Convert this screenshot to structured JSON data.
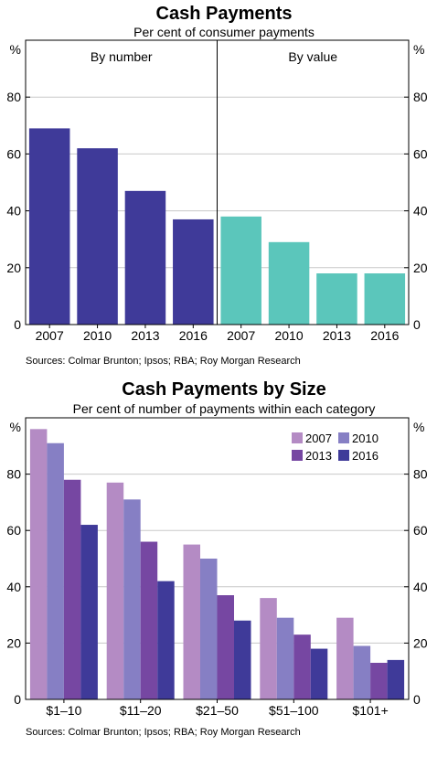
{
  "chart_data": [
    {
      "type": "bar",
      "title": "Cash Payments",
      "subtitle": "Per cent of consumer payments",
      "unit_left": "%",
      "unit_right": "%",
      "ylim": [
        0,
        100
      ],
      "yticks": [
        0,
        20,
        40,
        60,
        80
      ],
      "grid": true,
      "panels": [
        {
          "label": "By number",
          "categories": [
            "2007",
            "2010",
            "2013",
            "2016"
          ],
          "values": [
            69,
            62,
            47,
            37
          ],
          "color": "#3f3a99"
        },
        {
          "label": "By value",
          "categories": [
            "2007",
            "2010",
            "2013",
            "2016"
          ],
          "values": [
            38,
            29,
            18,
            18
          ],
          "color": "#5bc6bb"
        }
      ],
      "source": "Sources: Colmar Brunton; Ipsos; RBA; Roy Morgan Research"
    },
    {
      "type": "bar",
      "title": "Cash Payments by Size",
      "subtitle": "Per cent of number of payments within each category",
      "unit_left": "%",
      "unit_right": "%",
      "ylim": [
        0,
        100
      ],
      "yticks": [
        0,
        20,
        40,
        60,
        80
      ],
      "grid": true,
      "legend_position": "top-right",
      "categories": [
        "$1–10",
        "$11–20",
        "$21–50",
        "$51–100",
        "$101+"
      ],
      "series": [
        {
          "name": "2007",
          "color": "#b48bc4",
          "values": [
            96,
            77,
            55,
            36,
            29
          ]
        },
        {
          "name": "2010",
          "color": "#867fc4",
          "values": [
            91,
            71,
            50,
            29,
            19
          ]
        },
        {
          "name": "2013",
          "color": "#7647a2",
          "values": [
            78,
            56,
            37,
            23,
            13
          ]
        },
        {
          "name": "2016",
          "color": "#3f3a99",
          "values": [
            62,
            42,
            28,
            18,
            14
          ]
        }
      ],
      "source": "Sources: Colmar Brunton; Ipsos; RBA; Roy Morgan Research"
    }
  ]
}
